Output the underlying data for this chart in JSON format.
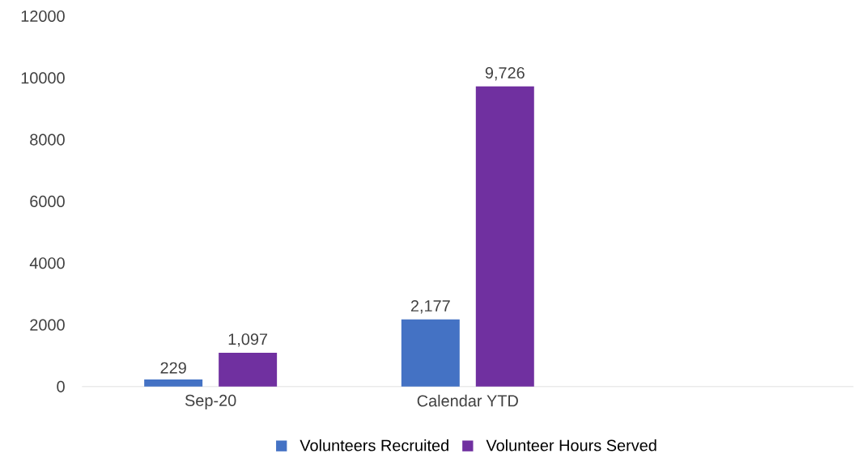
{
  "chart_data": {
    "type": "bar",
    "categories": [
      "Sep-20",
      "Calendar YTD",
      null
    ],
    "series": [
      {
        "name": "Volunteers Recruited",
        "color": "#4472c4",
        "values": [
          229,
          2177,
          null
        ],
        "value_labels": [
          "229",
          "2,177",
          null
        ]
      },
      {
        "name": "Volunteer Hours Served",
        "color": "#7030a0",
        "values": [
          1097,
          9726,
          null
        ],
        "value_labels": [
          "1,097",
          "9,726",
          null
        ]
      }
    ],
    "ylim": [
      0,
      12000
    ],
    "yticks": [
      0,
      2000,
      4000,
      6000,
      8000,
      10000,
      12000
    ],
    "grid": false,
    "legend": "bottom"
  }
}
